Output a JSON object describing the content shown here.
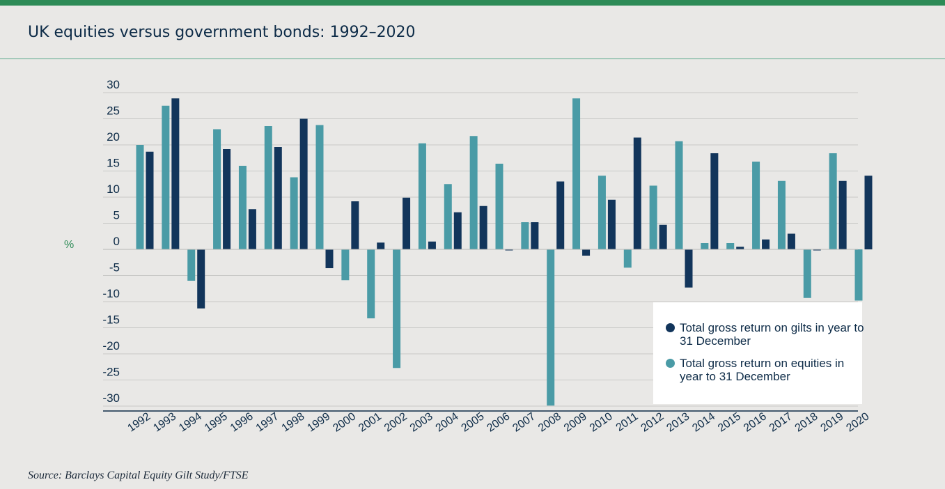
{
  "title": "UK equities versus government bonds: 1992–2020",
  "source": "Source: Barclays Capital Equity Gilt Study/FTSE",
  "colors": {
    "gilts": "#12355b",
    "equities": "#4a9ba6",
    "accent_bar": "#2e8b57",
    "axis_unit": "#2e8b57"
  },
  "chart_data": {
    "type": "bar",
    "title": "UK equities versus government bonds: 1992–2020",
    "ylabel": "%",
    "ylim": [
      -30,
      30
    ],
    "yticks": [
      30,
      25,
      20,
      15,
      10,
      5,
      0,
      -5,
      -10,
      -15,
      -20,
      -25,
      -30
    ],
    "grid": true,
    "legend_position": "bottom-right",
    "categories": [
      "1992",
      "1993",
      "1994",
      "1995",
      "1996",
      "1997",
      "1998",
      "1999",
      "2000",
      "2001",
      "2002",
      "2003",
      "2004",
      "2005",
      "2006",
      "2007",
      "2008",
      "2009",
      "2010",
      "2011",
      "2012",
      "2013",
      "2014",
      "2015",
      "2016",
      "2017",
      "2018",
      "2019",
      "2020"
    ],
    "series": [
      {
        "name": "Total gross return on equities in year to 31 December",
        "color": "#4a9ba6",
        "values": [
          20.0,
          27.5,
          -6.0,
          23.0,
          16.0,
          23.6,
          13.8,
          23.8,
          -5.9,
          -13.2,
          -22.7,
          20.3,
          12.5,
          21.7,
          16.4,
          5.2,
          -29.9,
          28.9,
          14.1,
          -3.5,
          12.2,
          20.7,
          1.2,
          1.2,
          16.8,
          13.1,
          -9.3,
          18.4,
          -9.8
        ]
      },
      {
        "name": "Total gross return on gilts in year to 31 December",
        "color": "#12355b",
        "values": [
          18.7,
          28.9,
          -11.3,
          19.2,
          7.7,
          19.6,
          25.0,
          -3.6,
          9.2,
          1.3,
          9.9,
          1.5,
          7.1,
          8.3,
          -0.2,
          5.2,
          13.0,
          -1.2,
          9.5,
          21.4,
          4.7,
          -7.3,
          18.4,
          0.5,
          1.9,
          3.0,
          -0.2,
          13.1,
          14.1
        ]
      }
    ],
    "legend": [
      {
        "series": "gilts",
        "text": "Total gross return on gilts in year to 31 December"
      },
      {
        "series": "equities",
        "text": "Total gross return on equities in year to 31 December"
      }
    ]
  }
}
